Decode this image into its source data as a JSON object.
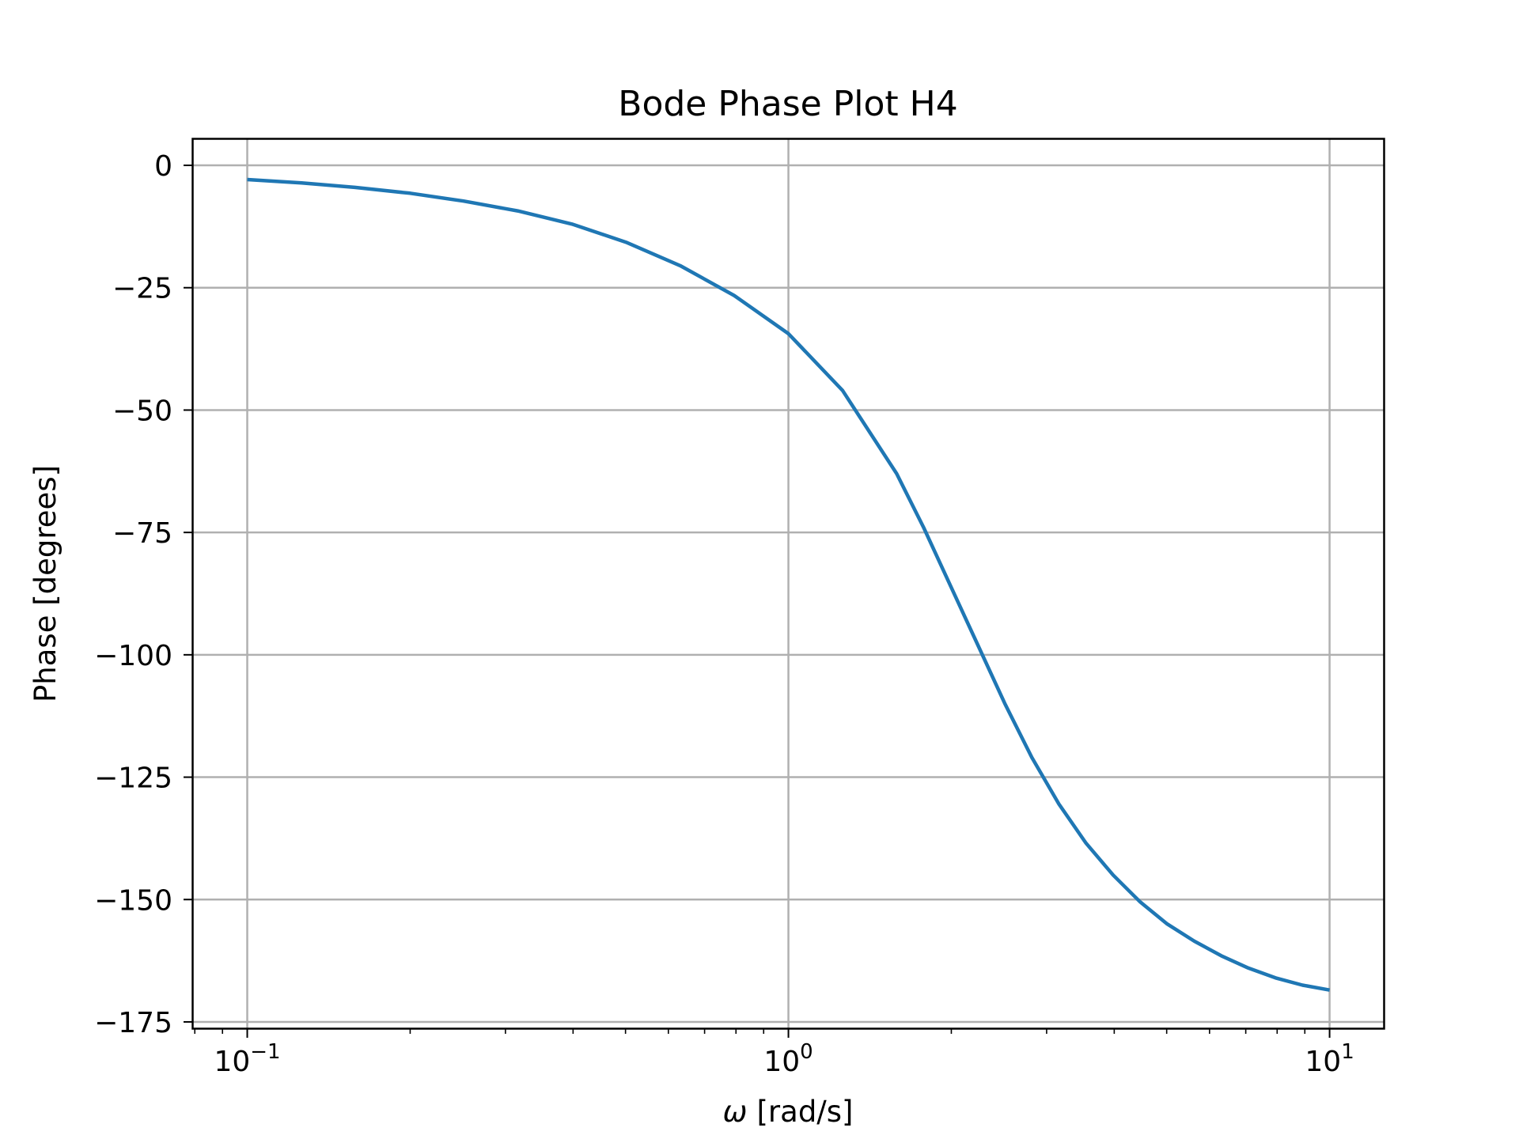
{
  "chart_data": {
    "type": "line",
    "title": "Bode Phase Plot H4",
    "xlabel_symbol": "ω",
    "xlabel_unit": "[rad/s]",
    "ylabel": "Phase [degrees]",
    "x_scale": "log",
    "xlim": [
      0.0794,
      12.59
    ],
    "ylim": [
      -176.3,
      5.5
    ],
    "grid": true,
    "x_ticks": [
      {
        "value": 0.1,
        "base": "10",
        "exp": "−1"
      },
      {
        "value": 1,
        "base": "10",
        "exp": "0"
      },
      {
        "value": 10,
        "base": "10",
        "exp": "1"
      }
    ],
    "y_ticks": [
      {
        "value": 0,
        "label": "0"
      },
      {
        "value": -25,
        "label": "−25"
      },
      {
        "value": -50,
        "label": "−50"
      },
      {
        "value": -75,
        "label": "−75"
      },
      {
        "value": -100,
        "label": "−100"
      },
      {
        "value": -125,
        "label": "−125"
      },
      {
        "value": -150,
        "label": "−150"
      },
      {
        "value": -175,
        "label": "−175"
      }
    ],
    "series": [
      {
        "color": "#1f77b4",
        "x": [
          0.1,
          0.126,
          0.158,
          0.2,
          0.251,
          0.316,
          0.398,
          0.501,
          0.631,
          0.794,
          1.0,
          1.259,
          1.585,
          1.778,
          1.995,
          2.239,
          2.512,
          2.818,
          3.162,
          3.548,
          3.981,
          4.467,
          5.012,
          5.623,
          6.31,
          7.079,
          7.943,
          8.913,
          10.0
        ],
        "y": [
          -2.9,
          -3.6,
          -4.5,
          -5.7,
          -7.3,
          -9.3,
          -12.0,
          -15.7,
          -20.5,
          -26.6,
          -34.4,
          -46.0,
          -63.0,
          -74.0,
          -86.0,
          -98.0,
          -110.0,
          -121.0,
          -130.5,
          -138.5,
          -145.0,
          -150.5,
          -155.0,
          -158.5,
          -161.5,
          -164.0,
          -166.0,
          -167.5,
          -168.5
        ]
      }
    ]
  }
}
